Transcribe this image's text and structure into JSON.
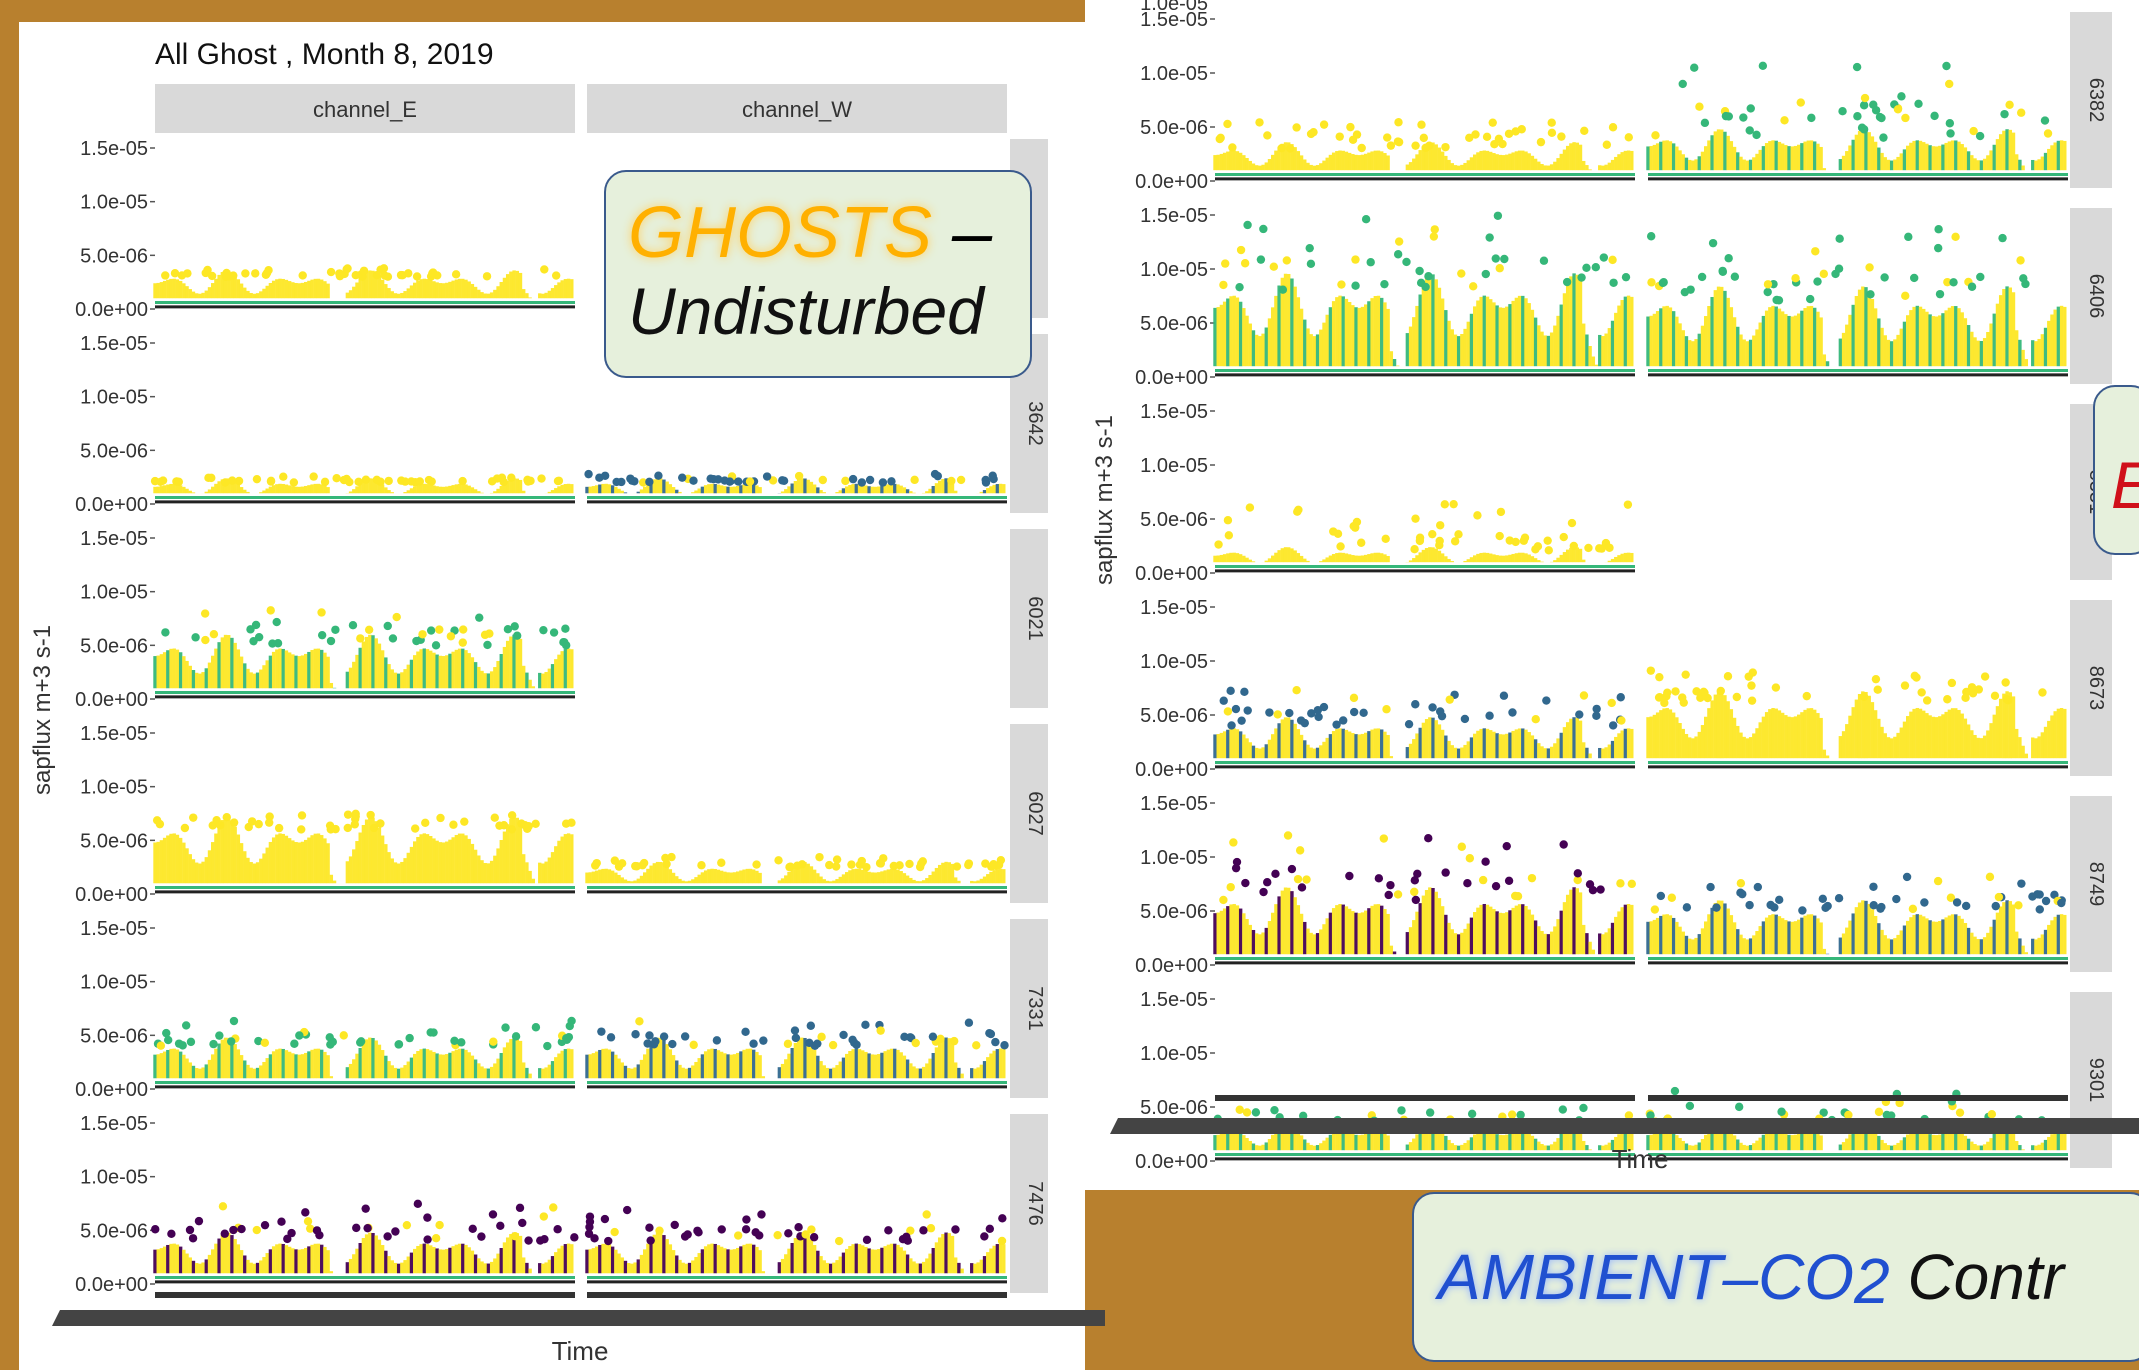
{
  "chart_data": [
    {
      "type": "scatter",
      "title": "All Ghost , Month 8, 2019",
      "xlabel": "Time",
      "ylabel": "sapflux m+3 s-1",
      "ylim": [
        0,
        1.5e-05
      ],
      "yticks": [
        "1.5e-05",
        "1.0e-05",
        "5.0e-06",
        "0.0e+00"
      ],
      "columns": [
        "channel_E",
        "channel_W"
      ],
      "rows": [
        "",
        "3642",
        "6021",
        "6027",
        "7331",
        "7476"
      ],
      "series_colors": [
        "#440154",
        "#31688e",
        "#35b779",
        "#fde725"
      ],
      "panels": [
        {
          "row": "",
          "col": "channel_E",
          "band": [
            1e-06,
            3e-06
          ],
          "peak": 3.8e-06,
          "dominant": "#fde725"
        },
        {
          "row": "",
          "col": "channel_W",
          "band": null
        },
        {
          "row": "3642",
          "col": "channel_E",
          "band": [
            1e-06,
            2e-06
          ],
          "peak": 2.6e-06,
          "dominant": "#fde725"
        },
        {
          "row": "3642",
          "col": "channel_W",
          "band": [
            1e-06,
            2e-06
          ],
          "peak": 2.8e-06,
          "dominant": "#31688e"
        },
        {
          "row": "6021",
          "col": "channel_E",
          "band": [
            1e-06,
            5e-06
          ],
          "peak": 8.5e-06,
          "dominant": "#35b779"
        },
        {
          "row": "6021",
          "col": "channel_W",
          "band": null
        },
        {
          "row": "6027",
          "col": "channel_E",
          "band": [
            1e-06,
            6e-06
          ],
          "peak": 7.5e-06,
          "dominant": "#fde725"
        },
        {
          "row": "6027",
          "col": "channel_W",
          "band": [
            1e-06,
            2.5e-06
          ],
          "peak": 3.5e-06,
          "dominant": "#fde725"
        },
        {
          "row": "7331",
          "col": "channel_E",
          "band": [
            1e-06,
            4e-06
          ],
          "peak": 6.5e-06,
          "dominant": "#35b779"
        },
        {
          "row": "7331",
          "col": "channel_W",
          "band": [
            1e-06,
            4e-06
          ],
          "peak": 6.5e-06,
          "dominant": "#31688e"
        },
        {
          "row": "7476",
          "col": "channel_E",
          "band": [
            1e-06,
            4e-06
          ],
          "peak": 7.5e-06,
          "dominant": "#440154"
        },
        {
          "row": "7476",
          "col": "channel_W",
          "band": [
            1e-06,
            4e-06
          ],
          "peak": 7e-06,
          "dominant": "#440154"
        }
      ]
    },
    {
      "type": "scatter",
      "xlabel": "Time",
      "ylabel": "sapflux m+3 s-1",
      "ylim": [
        0,
        1.5e-05
      ],
      "yticks": [
        "1.5e-05",
        "1.0e-05",
        "5.0e-06",
        "0.0e+00"
      ],
      "rows": [
        "6382",
        "6406",
        "8351",
        "8673",
        "8749",
        "9301"
      ],
      "series_colors": [
        "#440154",
        "#31688e",
        "#35b779",
        "#fde725"
      ],
      "panels": [
        {
          "row": "6382",
          "col": 1,
          "band": [
            1e-06,
            3e-06
          ],
          "peak": 5.5e-06,
          "dominant": "#fde725"
        },
        {
          "row": "6382",
          "col": 2,
          "band": [
            1e-06,
            4e-06
          ],
          "peak": 1.1e-05,
          "dominant": "#35b779"
        },
        {
          "row": "6406",
          "col": 1,
          "band": [
            1e-06,
            8e-06
          ],
          "peak": 1.5e-05,
          "dominant": "#35b779"
        },
        {
          "row": "6406",
          "col": 2,
          "band": [
            1e-06,
            7e-06
          ],
          "peak": 1.4e-05,
          "dominant": "#35b779"
        },
        {
          "row": "8351",
          "col": 1,
          "band": [
            1e-06,
            2e-06
          ],
          "peak": 6.5e-06,
          "dominant": "#fde725"
        },
        {
          "row": "8351",
          "col": 2,
          "band": null
        },
        {
          "row": "8673",
          "col": 1,
          "band": [
            1e-06,
            4e-06
          ],
          "peak": 7.5e-06,
          "dominant": "#31688e"
        },
        {
          "row": "8673",
          "col": 2,
          "band": [
            1e-06,
            6e-06
          ],
          "peak": 9.5e-06,
          "dominant": "#fde725"
        },
        {
          "row": "8749",
          "col": 1,
          "band": [
            1e-06,
            6e-06
          ],
          "peak": 1.2e-05,
          "dominant": "#440154"
        },
        {
          "row": "8749",
          "col": 2,
          "band": [
            1e-06,
            5e-06
          ],
          "peak": 8.5e-06,
          "dominant": "#31688e"
        },
        {
          "row": "9301",
          "col": 1,
          "band": [
            1e-06,
            3e-06
          ],
          "peak": 5e-06,
          "dominant": "#35b779"
        },
        {
          "row": "9301",
          "col": 2,
          "band": [
            1e-06,
            3e-06
          ],
          "peak": 6.5e-06,
          "dominant": "#35b779"
        }
      ],
      "top_partial_tick": "1.0e-05"
    }
  ],
  "callouts": {
    "ghost_highlight": "GHOSTS",
    "ghost_dash": " –",
    "ghost_line2": "Undisturbed",
    "elevated_fragment": "E",
    "ambient_highlight": "AMBIENT",
    "ambient_dash": "–CO",
    "ambient_sub": "2",
    "ambient_rest": " Contr"
  }
}
